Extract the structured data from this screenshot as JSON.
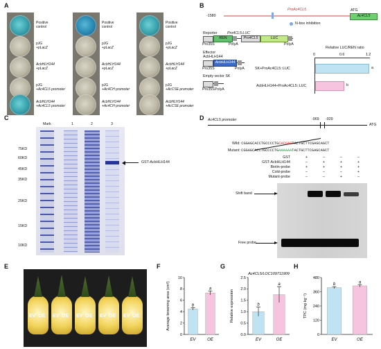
{
  "panel_labels": {
    "A": "A",
    "B": "B",
    "C": "C",
    "D": "D",
    "E": "E",
    "F": "F",
    "G": "G",
    "H": "H"
  },
  "panelA": {
    "col1": [
      {
        "l1": "Positive",
        "l2": "control",
        "color": "blue"
      },
      {
        "l1": "pJG",
        "l2": "+pLacZ",
        "color": "gray"
      },
      {
        "l1": "AcbHLH144",
        "l2": "+pLacZ",
        "color": "gray"
      },
      {
        "l1": "pJG",
        "l2": "+Ac4CL5 promoter",
        "color": "gray"
      },
      {
        "l1": "AcbHLH144",
        "l2": "+Ac4CL5 promoter",
        "color": "blue"
      }
    ],
    "col2": [
      {
        "l1": "Positive",
        "l2": "control",
        "color": "blue"
      },
      {
        "l1": "pJG",
        "l2": "+pLacZ",
        "color": "gray"
      },
      {
        "l1": "AcbHLH144",
        "l2": "+pLacZ",
        "color": "gray"
      },
      {
        "l1": "pJG",
        "l2": "+Ac4CH promoter",
        "color": "gray"
      },
      {
        "l1": "AcbHLH144",
        "l2": "+Ac4CH promoter",
        "color": "gray"
      }
    ],
    "col3": [
      {
        "l1": "Positive",
        "l2": "control",
        "color": "blue"
      },
      {
        "l1": "pJG",
        "l2": "+pLacZ",
        "color": "gray"
      },
      {
        "l1": "AcbHLH144",
        "l2": "+pLacZ",
        "color": "gray"
      },
      {
        "l1": "pJG",
        "l2": "+AcCSE promoter",
        "color": "gray"
      },
      {
        "l1": "AcbHLH144",
        "l2": "+AcCSE promoter",
        "color": "gray"
      }
    ]
  },
  "panelB": {
    "pos_label": "-1580",
    "promoter_label": "ProAc4CL5",
    "atg": "ATG",
    "gene_box": "Ac4CL5",
    "nbox_legend": "N-box inhibition",
    "reporter_title": "Reporter",
    "reporter_construct": "Pro4CL5:LUC",
    "ren": "REN",
    "pro35s": "Pro35S",
    "polya": "PolyA",
    "pro4cl5_box": "Pro4CL5",
    "luc": "LUC",
    "effector_title": "Effector",
    "effector_gene": "AcbHLH144",
    "effector_box": "AcbHLH144",
    "empty_title": "Empty vector SK",
    "ratio_title": "Relative LUC/REN ratio",
    "ticks": [
      "0",
      "0.6",
      "1.2"
    ],
    "bar_labels": [
      "SK+ProAc4CL5::LUC",
      "AcbHLH144+ProAc4CL5::LUC"
    ],
    "letters": [
      "a",
      "b"
    ]
  },
  "panelC": {
    "lane_labels": [
      "Mark",
      "1",
      "2",
      "3"
    ],
    "markers": [
      "75KD",
      "60KD",
      "45KD",
      "35KD",
      "25KD",
      "15KD",
      "10KD"
    ],
    "arrow_label": "GST-AcbHLH144"
  },
  "panelD": {
    "title": "Ac4CL5 promoter",
    "pos1": "-969",
    "pos2": "-929",
    "atg": "ATG",
    "wild_label": "Wild:",
    "wild_seq_a": "CGGAGCACCTGCCCCTG",
    "wild_seq_mid": "CACGAG",
    "wild_seq_b": "TACTGCTTCGAGCAGCT",
    "mut_label": "Mutant:",
    "mut_seq_a": "CGGAGCACCTGCCCCTG",
    "mut_seq_mid": "AAAAAA",
    "mut_seq_b": "TACTGCTTCGAGCAGCT",
    "rows": [
      {
        "name": "GST",
        "vals": [
          "+",
          "–",
          "–",
          "–"
        ]
      },
      {
        "name": "GST-AcbHLH144",
        "vals": [
          "–",
          "+",
          "+",
          "+"
        ]
      },
      {
        "name": "Biotin-probe",
        "vals": [
          "+",
          "+",
          "+",
          "+"
        ]
      },
      {
        "name": "Cold-probe",
        "vals": [
          "–",
          "–",
          "–",
          "+"
        ]
      },
      {
        "name": "Mutant-probe",
        "vals": [
          "–",
          "–",
          "+",
          "–"
        ]
      }
    ],
    "shift_label": "Shift band",
    "free_label": "Free probe"
  },
  "panelE": {
    "labels": [
      [
        "EV",
        "OE"
      ],
      [
        "EV",
        "OE"
      ],
      [
        "EV",
        "OE"
      ],
      [
        "EV",
        "OE"
      ],
      [
        "EV",
        "OE"
      ]
    ]
  },
  "chart_data": [
    {
      "type": "bar",
      "panel": "F",
      "categories": [
        "EV",
        "OE"
      ],
      "values": [
        4.5,
        7.3
      ],
      "errors": [
        0.2,
        0.35
      ],
      "letters": [
        "b",
        "a"
      ],
      "ylabel": "Average browning area (cm²)",
      "ylim": [
        0,
        10
      ],
      "yticks": [
        "0",
        "2",
        "4",
        "6",
        "8",
        "10"
      ],
      "colors": [
        "#bfe3f2",
        "#f6c4de"
      ]
    },
    {
      "type": "bar",
      "panel": "G",
      "title": "Ac4CL5/LOC109711909",
      "categories": [
        "EV",
        "OE"
      ],
      "values": [
        1.0,
        1.75
      ],
      "errors": [
        0.2,
        0.35
      ],
      "letters": [
        "b",
        "a"
      ],
      "ylabel": "Relative expression",
      "ylim": [
        0,
        2.5
      ],
      "yticks": [
        "0.0",
        "0.5",
        "1.0",
        "1.5",
        "2.0",
        "2.5"
      ],
      "colors": [
        "#bfe3f2",
        "#f6c4de"
      ]
    },
    {
      "type": "bar",
      "panel": "H",
      "categories": [
        "EV",
        "OE"
      ],
      "values": [
        395,
        410
      ],
      "errors": [
        8,
        10
      ],
      "letters": [
        "b",
        "a"
      ],
      "ylabel": "TPC (mg·kg⁻¹)",
      "ylim": [
        0,
        480
      ],
      "yticks": [
        "0",
        "120",
        "240",
        "360",
        "480"
      ],
      "colors": [
        "#bfe3f2",
        "#f6c4de"
      ]
    }
  ]
}
